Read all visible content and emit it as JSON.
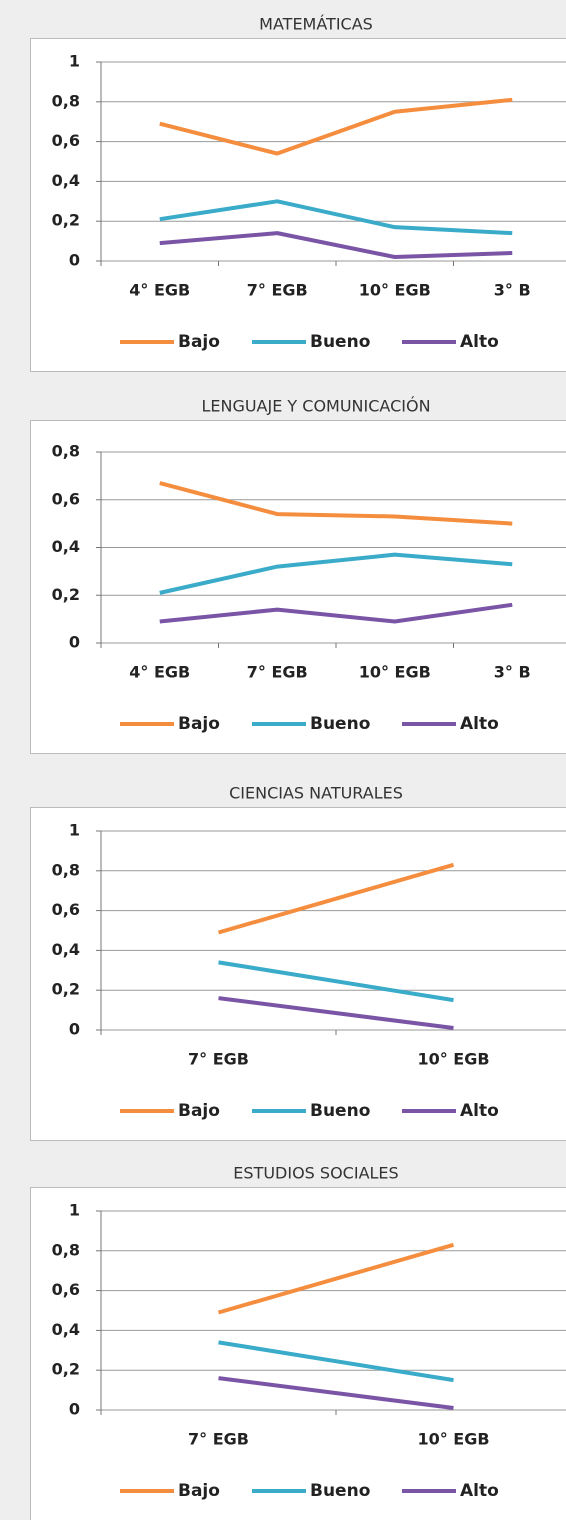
{
  "chart_data": [
    {
      "type": "line",
      "title": "MATEMÁTICAS",
      "categories": [
        "4° EGB",
        "7° EGB",
        "10° EGB",
        "3° B"
      ],
      "series": [
        {
          "name": "Bajo",
          "color": "#f58d3f",
          "values": [
            0.69,
            0.54,
            0.75,
            0.81
          ]
        },
        {
          "name": "Bueno",
          "color": "#3aabc9",
          "values": [
            0.21,
            0.3,
            0.17,
            0.14
          ]
        },
        {
          "name": "Alto",
          "color": "#7a55a6",
          "values": [
            0.09,
            0.14,
            0.02,
            0.04
          ]
        }
      ],
      "ylim": [
        0,
        1
      ],
      "yticks": [
        0,
        {
          "value": 0.2,
          "label": "0,2"
        },
        {
          "value": 0.4,
          "label": "0,4"
        },
        {
          "value": 0.6,
          "label": "0,6"
        },
        {
          "value": 0.8,
          "label": "0,8"
        },
        1
      ],
      "grid": true
    },
    {
      "type": "line",
      "title": "LENGUAJE Y COMUNICACIÓN",
      "categories": [
        "4° EGB",
        "7° EGB",
        "10° EGB",
        "3° B"
      ],
      "series": [
        {
          "name": "Bajo",
          "color": "#f58d3f",
          "values": [
            0.67,
            0.54,
            0.53,
            0.5
          ]
        },
        {
          "name": "Bueno",
          "color": "#3aabc9",
          "values": [
            0.21,
            0.32,
            0.37,
            0.33
          ]
        },
        {
          "name": "Alto",
          "color": "#7a55a6",
          "values": [
            0.09,
            0.14,
            0.09,
            0.16
          ]
        }
      ],
      "ylim": [
        0,
        0.8
      ],
      "yticks": [
        0,
        {
          "value": 0.2,
          "label": "0,2"
        },
        {
          "value": 0.4,
          "label": "0,4"
        },
        {
          "value": 0.6,
          "label": "0,6"
        },
        {
          "value": 0.8,
          "label": "0,8"
        }
      ],
      "grid": true
    },
    {
      "type": "line",
      "title": "CIENCIAS NATURALES",
      "categories": [
        "7° EGB",
        "10° EGB"
      ],
      "series": [
        {
          "name": "Bajo",
          "color": "#f58d3f",
          "values": [
            0.49,
            0.83
          ]
        },
        {
          "name": "Bueno",
          "color": "#3aabc9",
          "values": [
            0.34,
            0.15
          ]
        },
        {
          "name": "Alto",
          "color": "#7a55a6",
          "values": [
            0.16,
            0.01
          ]
        }
      ],
      "ylim": [
        0,
        1
      ],
      "yticks": [
        0,
        {
          "value": 0.2,
          "label": "0,2"
        },
        {
          "value": 0.4,
          "label": "0,4"
        },
        {
          "value": 0.6,
          "label": "0,6"
        },
        {
          "value": 0.8,
          "label": "0,8"
        },
        1
      ],
      "grid": true
    },
    {
      "type": "line",
      "title": "ESTUDIOS SOCIALES",
      "categories": [
        "7° EGB",
        "10° EGB"
      ],
      "series": [
        {
          "name": "Bajo",
          "color": "#f58d3f",
          "values": [
            0.49,
            0.83
          ]
        },
        {
          "name": "Bueno",
          "color": "#3aabc9",
          "values": [
            0.34,
            0.15
          ]
        },
        {
          "name": "Alto",
          "color": "#7a55a6",
          "values": [
            0.16,
            0.01
          ]
        }
      ],
      "ylim": [
        0,
        1
      ],
      "yticks": [
        0,
        {
          "value": 0.2,
          "label": "0,2"
        },
        {
          "value": 0.4,
          "label": "0,4"
        },
        {
          "value": 0.6,
          "label": "0,6"
        },
        {
          "value": 0.8,
          "label": "0,8"
        },
        1
      ],
      "grid": true
    }
  ]
}
